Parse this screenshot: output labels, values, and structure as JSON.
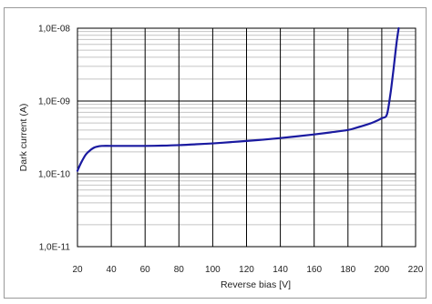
{
  "chart_data": {
    "type": "line",
    "title": "",
    "xlabel": "Reverse bias [V]",
    "ylabel": "Dark current  (A)",
    "x_scale": "linear",
    "y_scale": "log",
    "xlim": [
      20,
      220
    ],
    "ylim": [
      1e-11,
      1e-08
    ],
    "x_ticks": [
      20,
      40,
      60,
      80,
      100,
      120,
      140,
      160,
      180,
      200,
      220
    ],
    "x_tick_labels": [
      "20",
      "40",
      "60",
      "80",
      "100",
      "120",
      "140",
      "160",
      "180",
      "200",
      "220"
    ],
    "y_ticks": [
      1e-08,
      1e-09,
      1e-10,
      1e-11
    ],
    "y_tick_labels": [
      "1,0E-08",
      "1,0E-09",
      "1,0E-10",
      "1,0E-11"
    ],
    "grid": true,
    "legend": "none",
    "series": [
      {
        "color": "#1a1aa0",
        "x": [
          20,
          22,
          25,
          28,
          30,
          33,
          35,
          40,
          50,
          60,
          70,
          80,
          90,
          100,
          110,
          120,
          130,
          140,
          150,
          160,
          170,
          180,
          185,
          190,
          195,
          200,
          203,
          205,
          206,
          207,
          208,
          209,
          210
        ],
        "y": [
          1.1e-10,
          1.4e-10,
          1.85e-10,
          2.15e-10,
          2.3e-10,
          2.4e-10,
          2.42e-10,
          2.42e-10,
          2.42e-10,
          2.42e-10,
          2.44e-10,
          2.48e-10,
          2.55e-10,
          2.62e-10,
          2.72e-10,
          2.83e-10,
          2.95e-10,
          3.1e-10,
          3.28e-10,
          3.48e-10,
          3.72e-10,
          4e-10,
          4.3e-10,
          4.65e-10,
          5.1e-10,
          5.8e-10,
          6.5e-10,
          1.2e-09,
          1.8e-09,
          2.8e-09,
          4.5e-09,
          7e-09,
          1e-08
        ]
      }
    ]
  }
}
